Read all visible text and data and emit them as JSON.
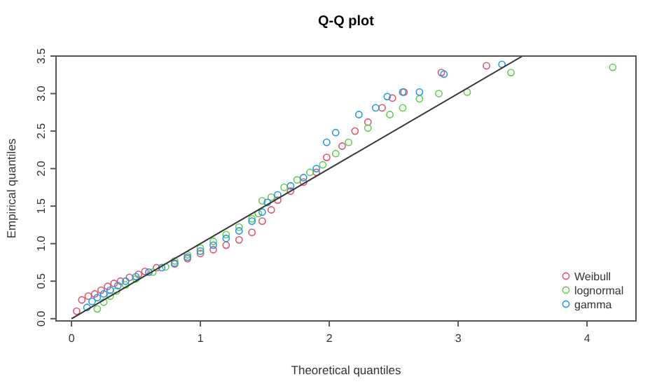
{
  "chart_data": {
    "type": "scatter",
    "title": "Q-Q plot",
    "xlabel": "Theoretical quantiles",
    "ylabel": "Empirical quantiles",
    "xlim": [
      -0.12,
      4.38
    ],
    "ylim": [
      -0.03,
      3.5
    ],
    "xticks": [
      0,
      1,
      2,
      3,
      4
    ],
    "yticks": [
      {
        "value": 0,
        "label": "0.0"
      },
      {
        "value": 0.5,
        "label": "0.5"
      },
      {
        "value": 1,
        "label": "1.0"
      },
      {
        "value": 1.5,
        "label": "1.5"
      },
      {
        "value": 2,
        "label": "2.0"
      },
      {
        "value": 2.5,
        "label": "2.5"
      },
      {
        "value": 3,
        "label": "3.0"
      },
      {
        "value": 3.5,
        "label": "3.5"
      }
    ],
    "grid": false,
    "legend": "bottom right",
    "marker": "circle",
    "series": [
      {
        "name": "Weibull",
        "color": "#df536b",
        "x": [
          0.04,
          0.08,
          0.13,
          0.18,
          0.23,
          0.28,
          0.33,
          0.38,
          0.45,
          0.52,
          0.57,
          0.66,
          0.8,
          0.9,
          1.0,
          1.1,
          1.2,
          1.3,
          1.4,
          1.48,
          1.55,
          1.6,
          1.7,
          1.8,
          1.9,
          1.98,
          2.1,
          2.2,
          2.3,
          2.41,
          2.49,
          2.58,
          2.87,
          3.22
        ],
        "values": [
          0.1,
          0.25,
          0.3,
          0.33,
          0.38,
          0.43,
          0.47,
          0.5,
          0.55,
          0.59,
          0.63,
          0.68,
          0.73,
          0.8,
          0.87,
          0.92,
          0.98,
          1.05,
          1.15,
          1.3,
          1.45,
          1.58,
          1.7,
          1.82,
          1.95,
          2.15,
          2.3,
          2.5,
          2.62,
          2.81,
          2.94,
          3.02,
          3.28,
          3.37
        ]
      },
      {
        "name": "lognormal",
        "color": "#61d04f",
        "x": [
          0.2,
          0.25,
          0.3,
          0.35,
          0.42,
          0.5,
          0.63,
          0.73,
          0.8,
          0.9,
          1.0,
          1.1,
          1.2,
          1.3,
          1.4,
          1.45,
          1.48,
          1.55,
          1.65,
          1.75,
          1.85,
          1.95,
          2.05,
          2.15,
          2.3,
          2.47,
          2.57,
          2.7,
          2.85,
          3.07,
          3.41,
          4.2
        ],
        "values": [
          0.13,
          0.22,
          0.3,
          0.37,
          0.45,
          0.53,
          0.62,
          0.69,
          0.77,
          0.85,
          0.94,
          1.03,
          1.12,
          1.22,
          1.33,
          1.4,
          1.57,
          1.62,
          1.75,
          1.85,
          1.95,
          2.05,
          2.2,
          2.35,
          2.54,
          2.72,
          2.81,
          2.93,
          3.0,
          3.02,
          3.28,
          3.35
        ]
      },
      {
        "name": "gamma",
        "color": "#2297e6",
        "x": [
          0.12,
          0.16,
          0.2,
          0.25,
          0.3,
          0.36,
          0.42,
          0.5,
          0.6,
          0.7,
          0.8,
          0.9,
          1.0,
          1.1,
          1.2,
          1.3,
          1.4,
          1.48,
          1.52,
          1.6,
          1.7,
          1.8,
          1.9,
          1.98,
          2.05,
          2.23,
          2.36,
          2.45,
          2.57,
          2.7,
          2.89,
          3.34
        ],
        "values": [
          0.15,
          0.23,
          0.28,
          0.33,
          0.38,
          0.44,
          0.5,
          0.56,
          0.62,
          0.68,
          0.74,
          0.82,
          0.9,
          0.98,
          1.07,
          1.17,
          1.3,
          1.42,
          1.55,
          1.65,
          1.77,
          1.88,
          2.0,
          2.35,
          2.48,
          2.72,
          2.81,
          2.96,
          3.02,
          3.02,
          3.26,
          3.39
        ]
      },
      {
        "type": "line",
        "color": "#333333",
        "marker": "none",
        "x": [
          0,
          3.5
        ],
        "values": [
          0,
          3.5
        ]
      }
    ]
  }
}
